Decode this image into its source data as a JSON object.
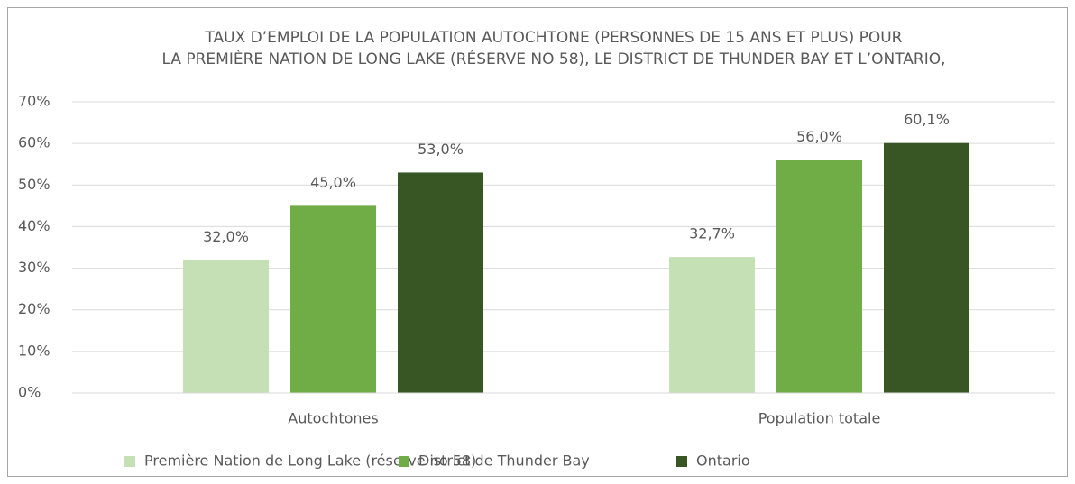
{
  "chart_data": {
    "type": "bar",
    "title": [
      "TAUX D’EMPLOI DE LA POPULATION AUTOCHTONE (PERSONNES DE 15 ANS ET PLUS) POUR",
      "LA PREMIÈRE NATION DE LONG LAKE (RÉSERVE NO 58), LE DISTRICT DE THUNDER BAY ET L’ONTARIO,"
    ],
    "categories": [
      "Autochtones",
      "Population totale"
    ],
    "series": [
      {
        "name": "Première Nation de Long Lake (réserve no 58)",
        "color": "#c5e0b4",
        "values": [
          32.0,
          32.7
        ],
        "value_labels": [
          "32,0%",
          "32,7%"
        ]
      },
      {
        "name": "District de Thunder Bay",
        "color": "#70ad47",
        "values": [
          45.0,
          56.0
        ],
        "value_labels": [
          "45,0%",
          "56,0%"
        ]
      },
      {
        "name": "Ontario",
        "color": "#375623",
        "values": [
          53.0,
          60.1
        ],
        "value_labels": [
          "53,0%",
          "60,1%"
        ]
      }
    ],
    "ylim": [
      0,
      70
    ],
    "yticks": [
      {
        "value": 0,
        "label": "0%"
      },
      {
        "value": 10,
        "label": "10%"
      },
      {
        "value": 20,
        "label": "20%"
      },
      {
        "value": 30,
        "label": "30%"
      },
      {
        "value": 40,
        "label": "40%"
      },
      {
        "value": 50,
        "label": "50%"
      },
      {
        "value": 60,
        "label": "60%"
      },
      {
        "value": 70,
        "label": "70%"
      }
    ],
    "grid": true,
    "legend": "bottom"
  }
}
